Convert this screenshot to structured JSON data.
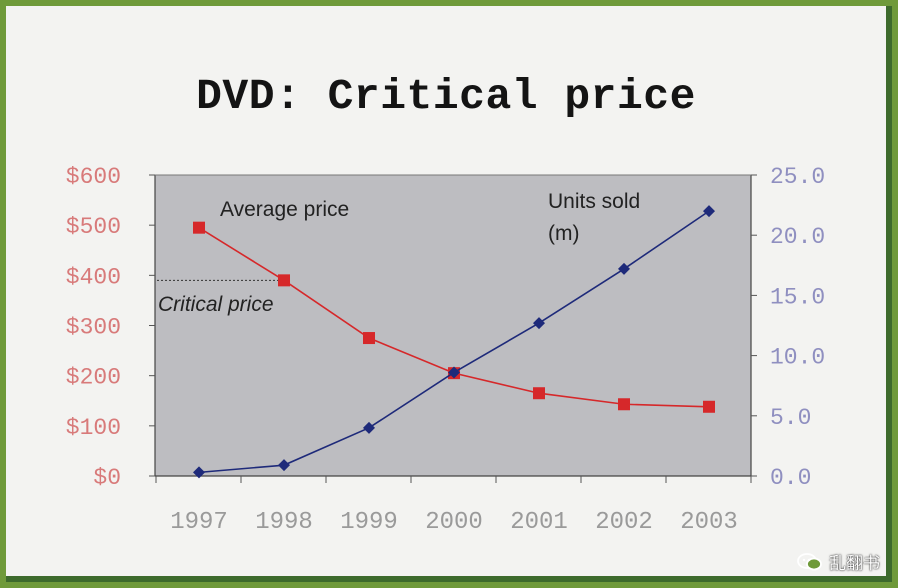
{
  "slide": {
    "title": "DVD: Critical price"
  },
  "watermark": {
    "text": "乱翻书",
    "icon": "wechat-icon"
  },
  "colors": {
    "price": "#d6282a",
    "units": "#1e2a7a",
    "plot_bg": "#bdbdc1",
    "left_axis_text": "#d87a7a",
    "right_axis_text": "#8f8fc0",
    "x_axis_text": "#9a9a9a"
  },
  "chart_data": {
    "type": "line",
    "title": "DVD: Critical price",
    "categories": [
      "1997",
      "1998",
      "1999",
      "2000",
      "2001",
      "2002",
      "2003"
    ],
    "series": [
      {
        "name": "Average price",
        "axis": "left",
        "marker": "square",
        "values": [
          495,
          390,
          275,
          205,
          165,
          143,
          138
        ]
      },
      {
        "name": "Units sold (m)",
        "axis": "right",
        "marker": "diamond",
        "values": [
          0.3,
          0.9,
          4.0,
          8.6,
          12.7,
          17.2,
          22.0
        ]
      }
    ],
    "y_left": {
      "ticks": [
        "$0",
        "$100",
        "$200",
        "$300",
        "$400",
        "$500",
        "$600"
      ],
      "min": 0,
      "max": 600
    },
    "y_right": {
      "ticks": [
        "0.0",
        "5.0",
        "10.0",
        "15.0",
        "20.0",
        "25.0"
      ],
      "min": 0,
      "max": 25
    },
    "annotations": [
      {
        "text": "Average price",
        "series": "Average price"
      },
      {
        "text": "Units sold",
        "series": "Units sold (m)"
      },
      {
        "text": "(m)",
        "series": "Units sold (m)"
      },
      {
        "text": "Critical price",
        "value": 390,
        "style": "italic, dotted line"
      }
    ],
    "grid": false,
    "legend": "none"
  }
}
